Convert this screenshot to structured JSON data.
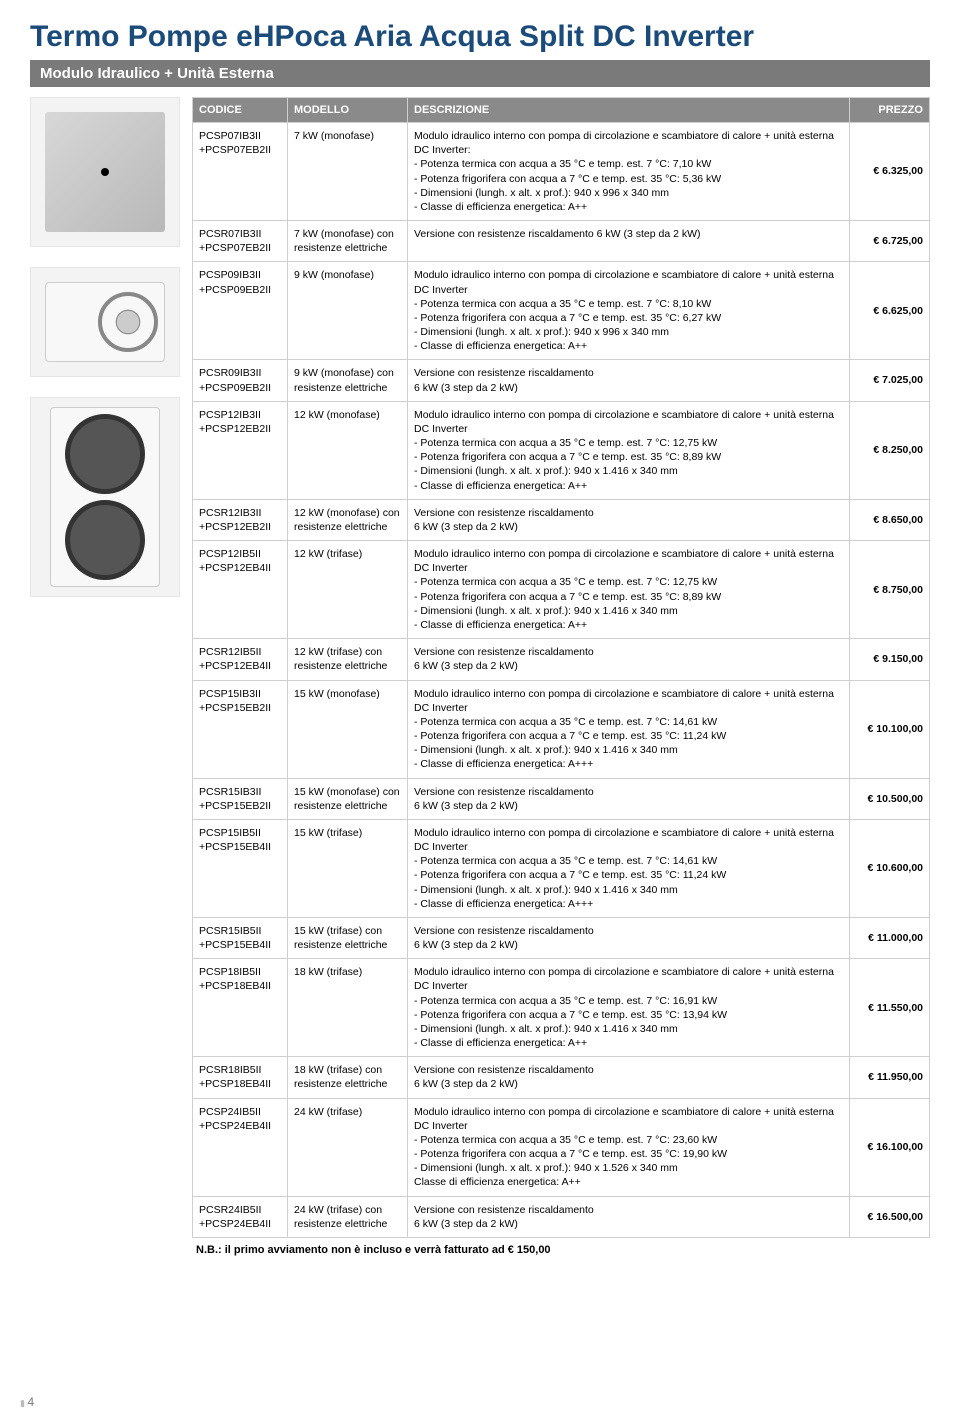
{
  "title": "Termo Pompe eHPoca Aria Acqua Split DC Inverter",
  "subtitle": "Modulo Idraulico + Unità Esterna",
  "headers": {
    "code": "CODICE",
    "model": "MODELLO",
    "desc": "DESCRIZIONE",
    "price": "PREZZO"
  },
  "footnote": "N.B.: il primo avviamento non è incluso e verrà fatturato ad € 150,00",
  "pagenum": "4",
  "rows": [
    {
      "code": "PCSP07IB3II\n+PCSP07EB2II",
      "model": "7 kW (monofase)",
      "intro": "Modulo idraulico interno con pompa di circolazione e scambiatore di calore + unità esterna DC Inverter:",
      "bullets": [
        "Potenza termica con acqua a 35 °C e temp. est. 7 °C: 7,10 kW",
        "Potenza frigorifera con acqua a 7 °C e temp. est. 35 °C: 5,36 kW",
        "Dimensioni (lungh. x alt. x prof.): 940 x 996 x 340 mm",
        "Classe di efficienza energetica: A++"
      ],
      "price": "€ 6.325,00"
    },
    {
      "code": "PCSR07IB3II\n+PCSP07EB2II",
      "model": "7 kW (monofase) con resistenze elettriche",
      "intro": "Versione con resistenze riscaldamento 6 kW (3 step da 2 kW)",
      "bullets": [],
      "price": "€ 6.725,00"
    },
    {
      "code": "PCSP09IB3II\n+PCSP09EB2II",
      "model": "9 kW (monofase)",
      "intro": "Modulo idraulico interno con pompa di circolazione e scambiatore di calore + unità esterna DC Inverter",
      "bullets": [
        "Potenza termica con acqua a 35 °C e temp. est. 7 °C: 8,10 kW",
        "Potenza frigorifera con acqua a 7 °C e temp. est. 35 °C: 6,27 kW",
        "Dimensioni (lungh. x alt. x prof.): 940 x 996 x 340 mm",
        "Classe di efficienza energetica: A++"
      ],
      "price": "€ 6.625,00"
    },
    {
      "code": "PCSR09IB3II\n+PCSP09EB2II",
      "model": "9 kW (monofase) con resistenze elettriche",
      "intro": "Versione con resistenze riscaldamento\n6 kW (3 step da 2 kW)",
      "bullets": [],
      "price": "€ 7.025,00"
    },
    {
      "code": "PCSP12IB3II\n+PCSP12EB2II",
      "model": "12 kW (monofase)",
      "intro": "Modulo idraulico interno con pompa di circolazione e scambiatore di calore + unità esterna DC Inverter",
      "bullets": [
        "Potenza termica con acqua a 35 °C e temp. est. 7 °C: 12,75 kW",
        "Potenza frigorifera con acqua a 7 °C e temp. est. 35 °C: 8,89 kW",
        "Dimensioni (lungh. x alt. x prof.): 940 x 1.416 x 340 mm",
        "Classe di efficienza energetica: A++"
      ],
      "price": "€ 8.250,00"
    },
    {
      "code": "PCSR12IB3II\n+PCSP12EB2II",
      "model": "12 kW (monofase) con resistenze elettriche",
      "intro": "Versione con resistenze riscaldamento\n6 kW (3 step da 2 kW)",
      "bullets": [],
      "price": "€ 8.650,00"
    },
    {
      "code": "PCSP12IB5II\n+PCSP12EB4II",
      "model": "12 kW (trifase)",
      "intro": "Modulo idraulico interno con pompa di circolazione e scambiatore di calore + unità esterna DC Inverter",
      "bullets": [
        "Potenza termica con acqua a 35 °C e temp. est. 7 °C: 12,75 kW",
        "Potenza frigorifera con acqua a 7 °C e temp. est. 35 °C: 8,89 kW",
        "Dimensioni (lungh. x alt. x prof.): 940 x 1.416 x 340 mm",
        "Classe di efficienza energetica: A++"
      ],
      "price": "€ 8.750,00"
    },
    {
      "code": "PCSR12IB5II\n+PCSP12EB4II",
      "model": "12 kW (trifase) con resistenze elettriche",
      "intro": "Versione con resistenze riscaldamento\n6 kW (3 step da 2 kW)",
      "bullets": [],
      "price": "€ 9.150,00"
    },
    {
      "code": "PCSP15IB3II\n+PCSP15EB2II",
      "model": "15 kW (monofase)",
      "intro": "Modulo idraulico interno con pompa di circolazione e scambiatore di calore + unità esterna DC Inverter",
      "bullets": [
        "Potenza termica con acqua a 35 °C e temp. est. 7 °C: 14,61 kW",
        "Potenza frigorifera con acqua a 7 °C e temp. est. 35 °C: 11,24 kW",
        "Dimensioni (lungh. x alt. x prof.): 940 x 1.416 x 340 mm",
        "Classe di efficienza energetica: A+++"
      ],
      "price": "€ 10.100,00"
    },
    {
      "code": "PCSR15IB3II\n+PCSP15EB2II",
      "model": "15 kW (monofase) con resistenze elettriche",
      "intro": "Versione con resistenze riscaldamento\n6 kW (3 step da 2 kW)",
      "bullets": [],
      "price": "€ 10.500,00"
    },
    {
      "code": "PCSP15IB5II\n+PCSP15EB4II",
      "model": "15 kW (trifase)",
      "intro": "Modulo idraulico interno con pompa di circolazione e scambiatore di calore + unità esterna DC Inverter",
      "bullets": [
        "Potenza termica con acqua a 35 °C e temp. est. 7 °C: 14,61 kW",
        "Potenza frigorifera con acqua a 7 °C e temp. est. 35 °C: 11,24 kW",
        "Dimensioni (lungh. x alt. x prof.): 940 x 1.416 x 340 mm",
        "Classe di efficienza energetica: A+++"
      ],
      "price": "€ 10.600,00"
    },
    {
      "code": "PCSR15IB5II\n+PCSP15EB4II",
      "model": "15 kW (trifase) con resistenze elettriche",
      "intro": "Versione con resistenze riscaldamento\n6 kW (3 step da 2 kW)",
      "bullets": [],
      "price": "€ 11.000,00"
    },
    {
      "code": "PCSP18IB5II\n+PCSP18EB4II",
      "model": "18 kW (trifase)",
      "intro": "Modulo idraulico interno con pompa di circolazione e scambiatore di calore + unità esterna DC Inverter",
      "bullets": [
        "Potenza termica con acqua a 35 °C e temp. est. 7 °C: 16,91 kW",
        "Potenza frigorifera con acqua a 7 °C e temp. est. 35 °C: 13,94 kW",
        "Dimensioni (lungh. x alt. x prof.): 940 x 1.416 x 340 mm",
        "Classe di efficienza energetica: A++"
      ],
      "price": "€ 11.550,00"
    },
    {
      "code": "PCSR18IB5II\n+PCSP18EB4II",
      "model": "18 kW (trifase) con resistenze elettriche",
      "intro": "Versione con resistenze riscaldamento\n6 kW (3 step da 2 kW)",
      "bullets": [],
      "price": "€ 11.950,00"
    },
    {
      "code": "PCSP24IB5II\n+PCSP24EB4II",
      "model": "24 kW (trifase)",
      "intro": "Modulo idraulico interno con pompa di circolazione e scambiatore di calore + unità esterna DC Inverter",
      "bullets": [
        "Potenza termica con acqua a 35 °C e temp. est. 7 °C: 23,60 kW",
        "Potenza frigorifera con acqua a 7 °C e temp. est. 35 °C: 19,90 kW",
        "Dimensioni (lungh. x alt. x prof.): 940 x 1.526 x 340 mm"
      ],
      "trailing": "Classe di efficienza energetica: A++",
      "price": "€ 16.100,00"
    },
    {
      "code": "PCSR24IB5II\n+PCSP24EB4II",
      "model": "24 kW (trifase) con resistenze elettriche",
      "intro": "Versione con resistenze riscaldamento\n6 kW (3 step da 2 kW)",
      "bullets": [],
      "price": "€ 16.500,00"
    }
  ]
}
